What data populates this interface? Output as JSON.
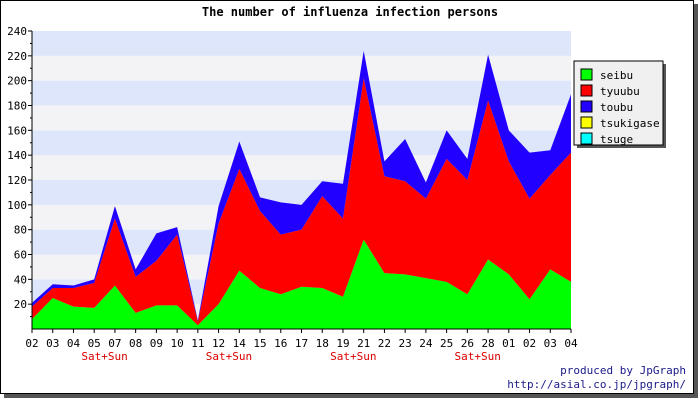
{
  "chart_data": {
    "type": "area",
    "stacked": true,
    "title": "The number of influenza infection persons",
    "categories": [
      "02",
      "03",
      "04",
      "05",
      "07",
      "08",
      "09",
      "10",
      "11",
      "12",
      "14",
      "15",
      "16",
      "17",
      "18",
      "19",
      "21",
      "22",
      "23",
      "24",
      "25",
      "26",
      "28",
      "01",
      "02",
      "03",
      "04"
    ],
    "weekend_markers": [
      {
        "after": "05",
        "label": "Sat+Sun"
      },
      {
        "after": "12",
        "label": "Sat+Sun"
      },
      {
        "after": "19",
        "label": "Sat+Sun"
      },
      {
        "after": "26",
        "label": "Sat+Sun"
      }
    ],
    "ylim": [
      0,
      240
    ],
    "yticks": [
      20,
      40,
      60,
      80,
      100,
      120,
      140,
      160,
      180,
      200,
      220,
      240
    ],
    "series": [
      {
        "name": "seibu",
        "color": "#00ff00",
        "values": [
          8,
          25,
          18,
          17,
          35,
          13,
          19,
          19,
          3,
          20,
          47,
          33,
          28,
          34,
          33,
          26,
          72,
          45,
          44,
          41,
          38,
          28,
          56,
          44,
          24,
          48,
          38
        ]
      },
      {
        "name": "tyuubu",
        "color": "#ff0000",
        "values": [
          10,
          8,
          15,
          20,
          54,
          29,
          36,
          57,
          3,
          65,
          82,
          62,
          48,
          46,
          74,
          63,
          130,
          78,
          75,
          64,
          99,
          92,
          128,
          91,
          81,
          76,
          104
        ]
      },
      {
        "name": "toubu",
        "color": "#2200ff",
        "values": [
          3,
          3,
          2,
          3,
          10,
          6,
          22,
          6,
          1,
          14,
          22,
          11,
          26,
          20,
          12,
          28,
          22,
          12,
          34,
          13,
          23,
          17,
          37,
          25,
          37,
          20,
          47
        ]
      },
      {
        "name": "tsukigase",
        "color": "#ffff00",
        "values": [
          0,
          0,
          0,
          0,
          0,
          0,
          0,
          0,
          0,
          0,
          0,
          0,
          0,
          0,
          0,
          0,
          0,
          0,
          0,
          0,
          0,
          0,
          0,
          0,
          0,
          0,
          0
        ]
      },
      {
        "name": "tsuge",
        "color": "#00ffff",
        "values": [
          0,
          0,
          0,
          0,
          0,
          0,
          0,
          0,
          0,
          0,
          0,
          0,
          0,
          0,
          0,
          0,
          0,
          0,
          0,
          0,
          0,
          0,
          0,
          0,
          0,
          0,
          0
        ]
      }
    ],
    "grid": true,
    "legend_position": "right",
    "band_colors": [
      "#f3f3f6",
      "#dde6fa"
    ]
  },
  "credits": {
    "line1": "produced by JpGraph",
    "line2": "http://asial.co.jp/jpgraph/"
  }
}
